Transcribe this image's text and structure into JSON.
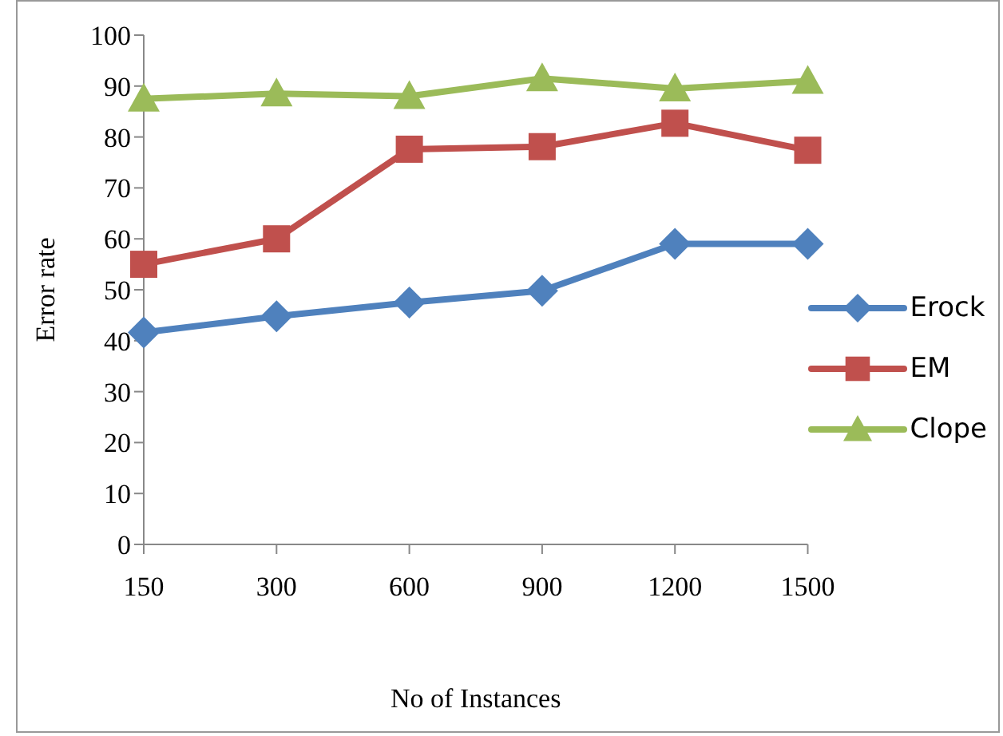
{
  "chart_data": {
    "type": "line",
    "xlabel": "No of Instances",
    "ylabel": "Error rate",
    "categories": [
      "150",
      "300",
      "600",
      "900",
      "1200",
      "1500"
    ],
    "ylim": [
      0,
      100
    ],
    "yticks": [
      0,
      10,
      20,
      30,
      40,
      50,
      60,
      70,
      80,
      90,
      100
    ],
    "grid": false,
    "legend": "right",
    "series": [
      {
        "name": "Erock",
        "color": "#4f81bd",
        "marker": "diamond",
        "values": [
          41.6,
          44.8,
          47.5,
          49.8,
          59.0,
          59.0
        ]
      },
      {
        "name": "EM",
        "color": "#c0504d",
        "marker": "square",
        "values": [
          55.0,
          60.0,
          77.6,
          78.1,
          82.7,
          77.4
        ]
      },
      {
        "name": "Clope",
        "color": "#9bbb59",
        "marker": "triangle",
        "values": [
          87.5,
          88.5,
          88.0,
          91.5,
          89.5,
          91.0
        ]
      }
    ]
  }
}
